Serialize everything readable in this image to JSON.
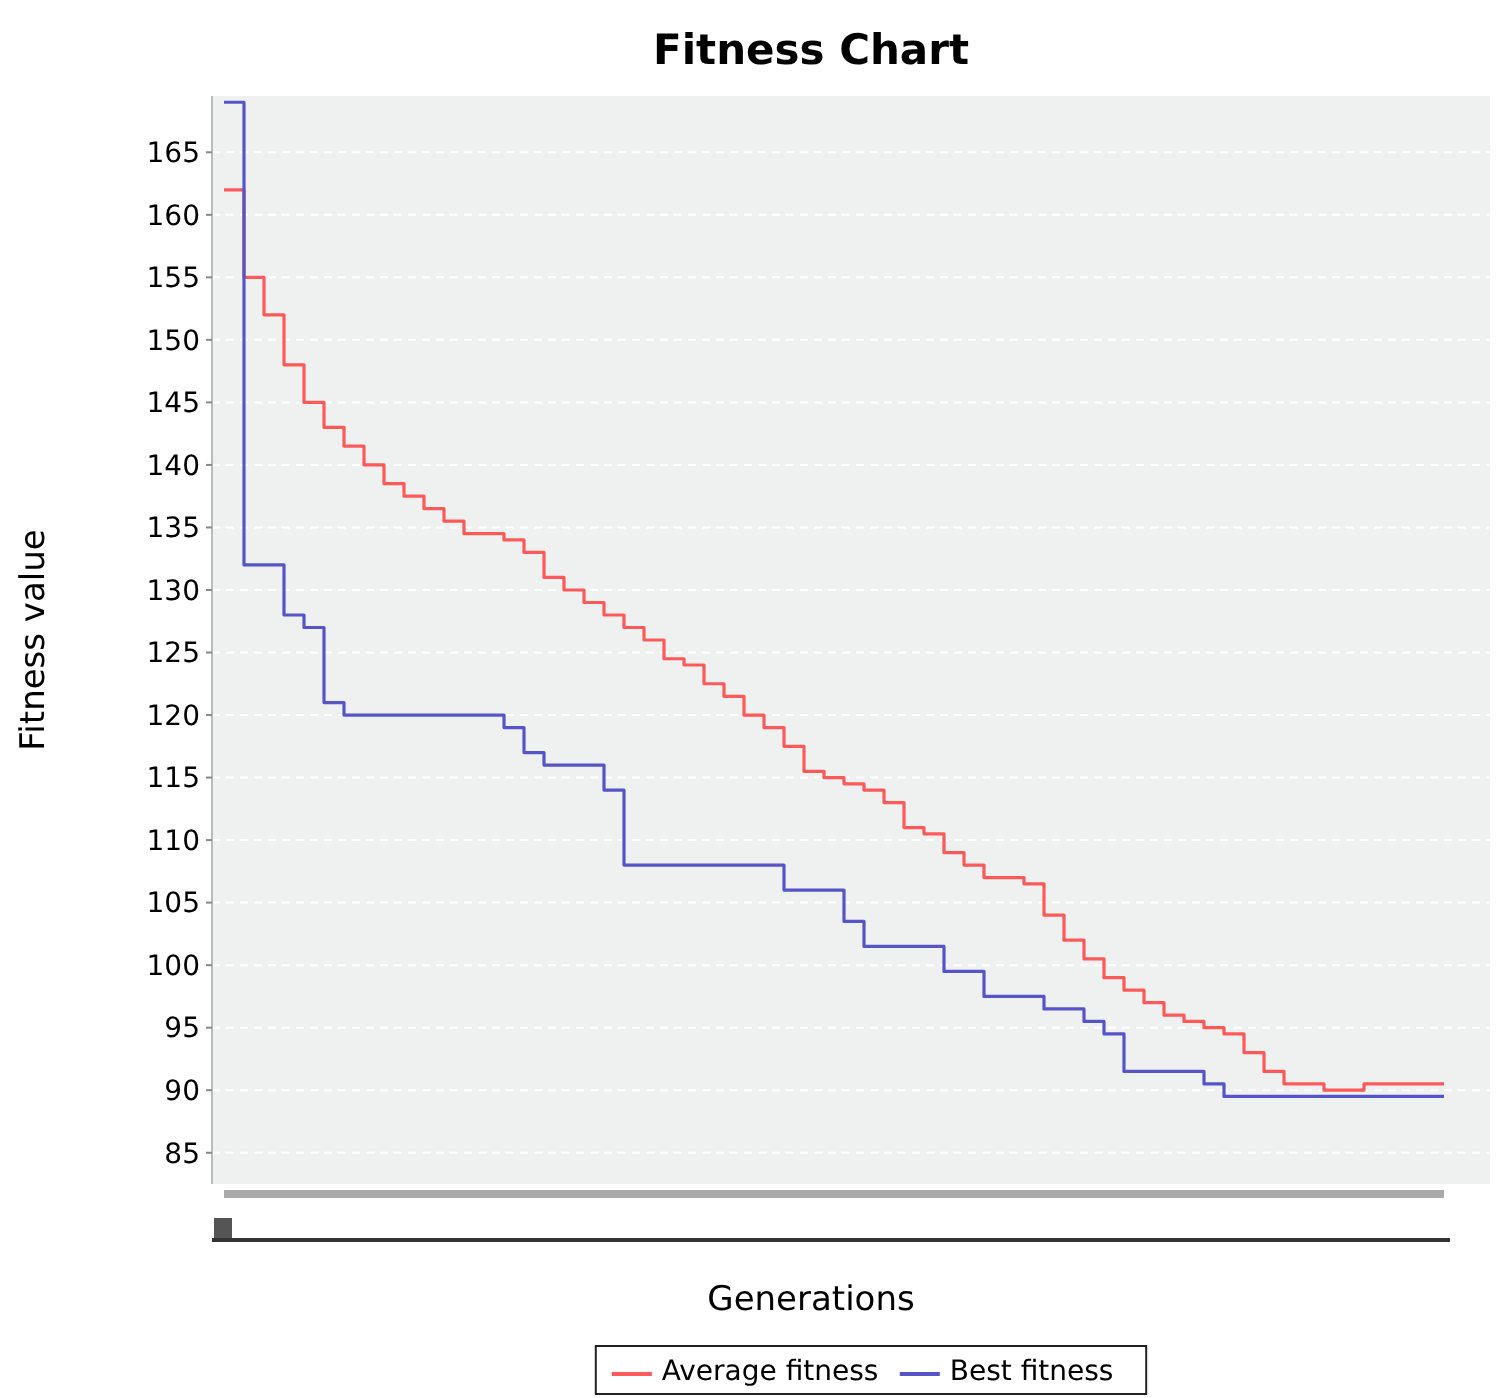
{
  "chart_data": {
    "type": "step",
    "title": "Fitness Chart",
    "xlabel": "Generations",
    "ylabel": "Fitness value",
    "categories": [
      null,
      null,
      null,
      null,
      null,
      null,
      null,
      null,
      null,
      null,
      null,
      null,
      null,
      null,
      null,
      null,
      null,
      null,
      null,
      null,
      null,
      null,
      null,
      null,
      null,
      null,
      null,
      null,
      null,
      null,
      null,
      null,
      null,
      null,
      null,
      null,
      null,
      null,
      null,
      null,
      null,
      null,
      null,
      null,
      null,
      null,
      null,
      null,
      null,
      null,
      null,
      null,
      null,
      null,
      null,
      null,
      null,
      null,
      null,
      null,
      null,
      null
    ],
    "ylim": [
      82.5,
      169.5
    ],
    "yticks": [
      85,
      90,
      95,
      100,
      105,
      110,
      115,
      120,
      125,
      130,
      135,
      140,
      145,
      150,
      155,
      160,
      165
    ],
    "grid": "y",
    "legend": "bottom",
    "marker": "none",
    "line_style": "solid",
    "series": [
      {
        "name": "Average fitness",
        "color": "#ff5a5a",
        "values": [
          162,
          155,
          152,
          148,
          145,
          143,
          141.5,
          140,
          138.5,
          137.5,
          136.5,
          135.5,
          134.5,
          134.5,
          134,
          133,
          131,
          130,
          129,
          128,
          127,
          126,
          124.5,
          124,
          122.5,
          121.5,
          120,
          119,
          117.5,
          115.5,
          115,
          114.5,
          114,
          113,
          111,
          110.5,
          109,
          108,
          107,
          107,
          106.5,
          104,
          102,
          100.5,
          99,
          98,
          97,
          96,
          95.5,
          95,
          94.5,
          93,
          91.5,
          90.5,
          90.5,
          90,
          90,
          90.5,
          90.5,
          90.5,
          90.5,
          90.5
        ]
      },
      {
        "name": "Best fitness",
        "color": "#5555c8",
        "values": [
          169,
          132,
          132,
          128,
          127,
          121,
          120,
          120,
          120,
          120,
          120,
          120,
          120,
          120,
          119,
          117,
          116,
          116,
          116,
          114,
          108,
          108,
          108,
          108,
          108,
          108,
          108,
          108,
          106,
          106,
          106,
          103.5,
          101.5,
          101.5,
          101.5,
          101.5,
          99.5,
          99.5,
          97.5,
          97.5,
          97.5,
          96.5,
          96.5,
          95.5,
          94.5,
          91.5,
          91.5,
          91.5,
          91.5,
          90.5,
          89.5,
          89.5,
          89.5,
          89.5,
          89.5,
          89.5,
          89.5,
          89.5,
          89.5,
          89.5,
          89.5,
          89.5
        ]
      }
    ]
  }
}
